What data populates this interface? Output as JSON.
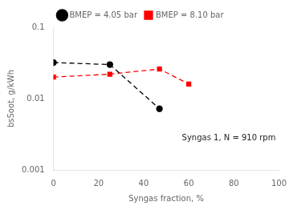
{
  "chart_data": {
    "type": "line",
    "xlabel": "Syngas fraction, %",
    "ylabel": "bsSoot, g/kWh",
    "annotation": "Syngas 1, N = 910 rpm",
    "series": [
      {
        "name": "BMEP = 4.05 bar",
        "color": "#000000",
        "marker": "circle",
        "line_style": "dashed",
        "x": [
          0,
          25,
          47
        ],
        "values": [
          0.032,
          0.03,
          0.0072
        ]
      },
      {
        "name": "BMEP = 8.10 bar",
        "color": "#ff0000",
        "marker": "square",
        "line_style": "dashed",
        "x": [
          0,
          25,
          47,
          60
        ],
        "values": [
          0.02,
          0.022,
          0.026,
          0.016
        ]
      }
    ],
    "xlim": [
      0,
      100
    ],
    "xticks": [
      0,
      20,
      40,
      60,
      80,
      100
    ],
    "ylim": [
      0.001,
      0.1
    ],
    "yticks": [
      0.001,
      0.01,
      0.1
    ],
    "log": "y",
    "grid": false,
    "legend": "top"
  }
}
